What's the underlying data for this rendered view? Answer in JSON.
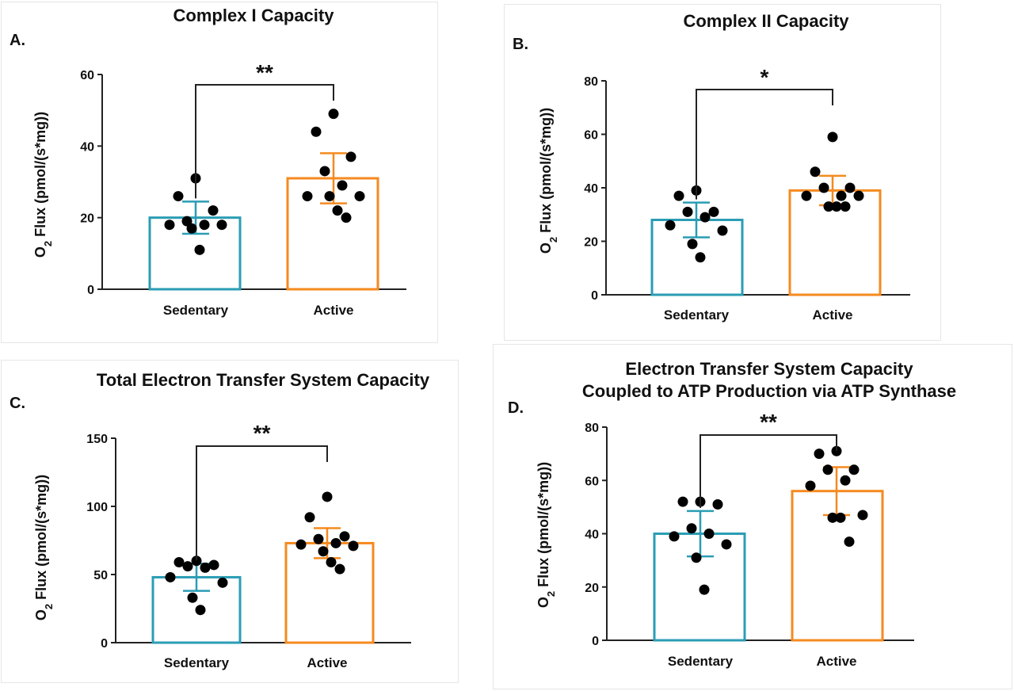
{
  "colors": {
    "sedentary": "#2a9db4",
    "active": "#f58a1f",
    "dots": "#000000",
    "axis": "#222222"
  },
  "ylabel": {
    "main": "O",
    "sub": "2",
    "rest": " Flux (pmol/(s*mg))"
  },
  "chart_data": [
    {
      "type": "bar",
      "letter": "A.",
      "title": [
        "Complex I Capacity"
      ],
      "categories": [
        "Sedentary",
        "Active"
      ],
      "values": [
        20,
        31
      ],
      "errors": [
        4.5,
        7
      ],
      "ylim": [
        0,
        60
      ],
      "yticks": [
        0,
        20,
        40,
        60
      ],
      "points": [
        [
          31,
          26,
          22,
          19,
          18,
          18,
          18,
          17,
          11
        ],
        [
          49,
          44,
          37,
          33,
          29,
          26,
          26,
          26,
          22,
          20
        ]
      ],
      "significance": "**"
    },
    {
      "type": "bar",
      "letter": "B.",
      "title": [
        "Complex II Capacity"
      ],
      "categories": [
        "Sedentary",
        "Active"
      ],
      "values": [
        28,
        39
      ],
      "errors": [
        6.5,
        5.5
      ],
      "ylim": [
        0,
        80
      ],
      "yticks": [
        0,
        20,
        40,
        60,
        80
      ],
      "points": [
        [
          39,
          37,
          31,
          31,
          29,
          26,
          24,
          19,
          14
        ],
        [
          59,
          46,
          40,
          40,
          37,
          37,
          37,
          33,
          33,
          33
        ]
      ],
      "significance": "*"
    },
    {
      "type": "bar",
      "letter": "C.",
      "title": [
        "Total Electron Transfer System Capacity"
      ],
      "categories": [
        "Sedentary",
        "Active"
      ],
      "values": [
        48,
        73
      ],
      "errors": [
        10,
        11
      ],
      "ylim": [
        0,
        150
      ],
      "yticks": [
        0,
        50,
        100,
        150
      ],
      "points": [
        [
          60,
          59,
          57,
          56,
          55,
          48,
          44,
          33,
          24
        ],
        [
          107,
          92,
          78,
          76,
          73,
          72,
          71,
          67,
          59,
          54
        ]
      ],
      "significance": "**"
    },
    {
      "type": "bar",
      "letter": "D.",
      "title": [
        "Electron Transfer System Capacity",
        "Coupled to ATP Production via ATP Synthase"
      ],
      "categories": [
        "Sedentary",
        "Active"
      ],
      "values": [
        40,
        56
      ],
      "errors": [
        8.5,
        9
      ],
      "ylim": [
        0,
        80
      ],
      "yticks": [
        0,
        20,
        40,
        60,
        80
      ],
      "points": [
        [
          52,
          52,
          51,
          42,
          40,
          39,
          36,
          31,
          19
        ],
        [
          71,
          70,
          64,
          64,
          60,
          58,
          47,
          46,
          46,
          37
        ]
      ],
      "significance": "**"
    }
  ]
}
